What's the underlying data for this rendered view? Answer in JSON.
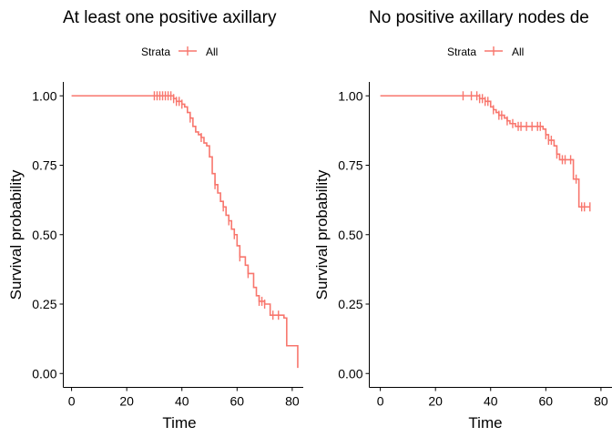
{
  "chart_data": [
    {
      "type": "line",
      "title": "At least one positive axillary",
      "legend": {
        "title": "Strata",
        "items": [
          "All"
        ]
      },
      "xlabel": "Time",
      "ylabel": "Survival probability",
      "xlim": [
        -3,
        84
      ],
      "ylim": [
        -0.05,
        1.05
      ],
      "xticks": [
        0,
        20,
        40,
        60,
        80
      ],
      "yticks": [
        0.0,
        0.25,
        0.5,
        0.75,
        1.0
      ],
      "ytick_labels": [
        "0.00",
        "0.25",
        "0.50",
        "0.75",
        "1.00"
      ],
      "series": [
        {
          "name": "All",
          "color": "#F8766D",
          "steps": [
            [
              0,
              1.0
            ],
            [
              37,
              0.99
            ],
            [
              38,
              0.98
            ],
            [
              40,
              0.97
            ],
            [
              41,
              0.96
            ],
            [
              42,
              0.94
            ],
            [
              43,
              0.92
            ],
            [
              44,
              0.89
            ],
            [
              45,
              0.87
            ],
            [
              46,
              0.86
            ],
            [
              47,
              0.85
            ],
            [
              48,
              0.83
            ],
            [
              49,
              0.82
            ],
            [
              50,
              0.78
            ],
            [
              51,
              0.72
            ],
            [
              52,
              0.68
            ],
            [
              53,
              0.65
            ],
            [
              54,
              0.62
            ],
            [
              55,
              0.6
            ],
            [
              56,
              0.57
            ],
            [
              57,
              0.55
            ],
            [
              58,
              0.52
            ],
            [
              59,
              0.5
            ],
            [
              60,
              0.46
            ],
            [
              61,
              0.42
            ],
            [
              63,
              0.39
            ],
            [
              64,
              0.36
            ],
            [
              66,
              0.31
            ],
            [
              67,
              0.28
            ],
            [
              68,
              0.26
            ],
            [
              70,
              0.25
            ],
            [
              72,
              0.21
            ],
            [
              77,
              0.2
            ],
            [
              78,
              0.1
            ],
            [
              82,
              0.02
            ]
          ],
          "x_end": 82,
          "censor_times": [
            30,
            31,
            32,
            33,
            34,
            35,
            36,
            37,
            38,
            39,
            40,
            43,
            47,
            52,
            55,
            57,
            59,
            61,
            64,
            68,
            69,
            70,
            73,
            75
          ]
        }
      ]
    },
    {
      "type": "line",
      "title": "No positive axillary nodes de",
      "legend": {
        "title": "Strata",
        "items": [
          "All"
        ]
      },
      "xlabel": "Time",
      "ylabel": "Survival probability",
      "xlim": [
        -4,
        84
      ],
      "ylim": [
        -0.05,
        1.05
      ],
      "xticks": [
        0,
        20,
        40,
        60,
        80
      ],
      "yticks": [
        0.0,
        0.25,
        0.5,
        0.75,
        1.0
      ],
      "ytick_labels": [
        "0.00",
        "0.25",
        "0.50",
        "0.75",
        "1.00"
      ],
      "series": [
        {
          "name": "All",
          "color": "#F8766D",
          "steps": [
            [
              0,
              1.0
            ],
            [
              36,
              0.99
            ],
            [
              38,
              0.98
            ],
            [
              40,
              0.96
            ],
            [
              41,
              0.95
            ],
            [
              42,
              0.94
            ],
            [
              43,
              0.93
            ],
            [
              45,
              0.92
            ],
            [
              46,
              0.91
            ],
            [
              47,
              0.9
            ],
            [
              49,
              0.89
            ],
            [
              59,
              0.88
            ],
            [
              60,
              0.86
            ],
            [
              61,
              0.84
            ],
            [
              63,
              0.82
            ],
            [
              64,
              0.79
            ],
            [
              65,
              0.77
            ],
            [
              70,
              0.7
            ],
            [
              72,
              0.6
            ]
          ],
          "x_end": 76,
          "censor_times": [
            30,
            33,
            35,
            36,
            37,
            38,
            39,
            41,
            43,
            44,
            46,
            48,
            50,
            51,
            53,
            55,
            57,
            58,
            60,
            61,
            62,
            64,
            66,
            67,
            69,
            71,
            73,
            74,
            76
          ]
        }
      ]
    }
  ]
}
